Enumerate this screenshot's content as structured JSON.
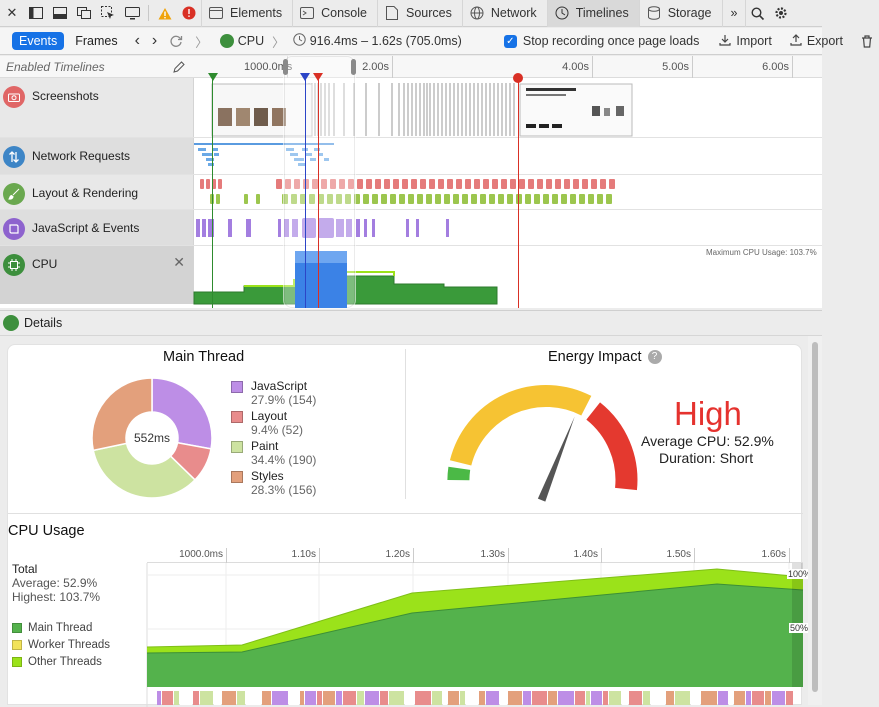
{
  "tabs": [
    {
      "label": "Elements",
      "icon": "elements-icon"
    },
    {
      "label": "Console",
      "icon": "console-icon"
    },
    {
      "label": "Sources",
      "icon": "sources-icon"
    },
    {
      "label": "Network",
      "icon": "network-icon"
    },
    {
      "label": "Timelines",
      "icon": "timelines-icon",
      "active": true
    },
    {
      "label": "Storage",
      "icon": "storage-icon"
    }
  ],
  "toolbar": {
    "events_label": "Events",
    "frames_label": "Frames",
    "breadcrumb": "CPU",
    "range": "916.4ms – 1.62s (705.0ms)",
    "stop_recording_label": "Stop recording once page loads",
    "import_label": "Import",
    "export_label": "Export"
  },
  "overview": {
    "enabled_label": "Enabled Timelines",
    "ruler_ticks": [
      "1000.0ms",
      "2.00s",
      "4.00s",
      "5.00s",
      "6.00s"
    ],
    "rows": [
      {
        "name": "Screenshots",
        "color": "#e06666"
      },
      {
        "name": "Network Requests",
        "color": "#3d85c6"
      },
      {
        "name": "Layout & Rendering",
        "color": "#6aa84f"
      },
      {
        "name": "JavaScript & Events",
        "color": "#8e63ce"
      },
      {
        "name": "CPU",
        "color": "#3d8f3d"
      }
    ],
    "max_cpu_label": "Maximum CPU Usage: 103.7%"
  },
  "details": {
    "title": "Details",
    "main_thread": {
      "title": "Main Thread",
      "total": "552ms",
      "items": [
        {
          "name": "JavaScript",
          "value": "27.9% (154)",
          "color": "#bd8ee6",
          "pct": 27.9
        },
        {
          "name": "Layout",
          "value": "9.4% (52)",
          "color": "#e88c8c",
          "pct": 9.4
        },
        {
          "name": "Paint",
          "value": "34.4% (190)",
          "color": "#cde3a1",
          "pct": 34.4
        },
        {
          "name": "Styles",
          "value": "28.3% (156)",
          "color": "#e3a07c",
          "pct": 28.3
        }
      ]
    },
    "energy": {
      "title": "Energy Impact",
      "level": "High",
      "avg_cpu": "Average CPU: 52.9%",
      "duration": "Duration: Short",
      "gauge_value": 0.62
    },
    "cpu_usage": {
      "title": "CPU Usage",
      "ticks": [
        "1000.0ms",
        "1.10s",
        "1.20s",
        "1.30s",
        "1.40s",
        "1.50s",
        "1.60s"
      ],
      "total_label": "Total",
      "average": "Average: 52.9%",
      "highest": "Highest: 103.7%",
      "legend": [
        {
          "name": "Main Thread",
          "color": "#54b24c"
        },
        {
          "name": "Worker Threads",
          "color": "#f2e35a"
        },
        {
          "name": "Other Threads",
          "color": "#9be21a"
        }
      ],
      "label_100": "100%",
      "label_50": "50%"
    }
  }
}
